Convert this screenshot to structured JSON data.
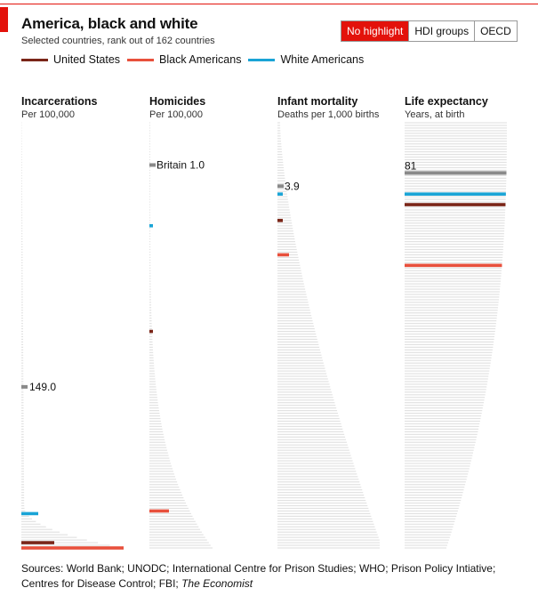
{
  "header": {
    "title": "America, black and white",
    "subtitle": "Selected countries, rank out of 162 countries"
  },
  "toggle": {
    "options": [
      "No highlight",
      "HDI groups",
      "OECD"
    ],
    "active_index": 0
  },
  "legend": [
    {
      "label": "United States",
      "color": "#7a2518"
    },
    {
      "label": "Black Americans",
      "color": "#e8503c"
    },
    {
      "label": "White Americans",
      "color": "#1aa4d6"
    }
  ],
  "colors": {
    "country_bar": "#e2e2e2",
    "highlight_country": "#8a8a8a",
    "united_states": "#7a2518",
    "black_americans": "#e8503c",
    "white_americans": "#1aa4d6"
  },
  "chart_data": {
    "type": "bar",
    "countries": 162,
    "panels": [
      {
        "title": "Incarcerations",
        "unit": "Per 100,000",
        "bar_shape": "right-heavy",
        "reference": {
          "label": "149.0",
          "rank": 101
        },
        "ranks": {
          "united_states": 160,
          "black_americans": 162,
          "white_americans": 149
        }
      },
      {
        "title": "Homicides",
        "unit": "Per 100,000",
        "bar_shape": "tail-heavy",
        "reference": {
          "label": "Britain 1.0",
          "rank": 17
        },
        "ranks": {
          "white_americans": 40,
          "united_states": 80,
          "black_americans": 148
        }
      },
      {
        "title": "Infant mortality",
        "unit": "Deaths per 1,000 births",
        "bar_shape": "gradual",
        "reference": {
          "label": "3.9",
          "rank": 25
        },
        "ranks": {
          "white_americans": 28,
          "united_states": 38,
          "black_americans": 51
        }
      },
      {
        "title": "Life expectancy",
        "unit": "Years, at birth",
        "bar_shape": "inverse",
        "reference": {
          "label": "81",
          "rank": 20
        },
        "ranks": {
          "white_americans": 28,
          "united_states": 32,
          "black_americans": 55
        }
      }
    ]
  },
  "source": {
    "text": "Sources: World Bank; UNODC; International Centre for Prison Studies; WHO; Prison Policy Intiative; Centres for Disease Control; FBI; ",
    "italic": "The Economist"
  }
}
